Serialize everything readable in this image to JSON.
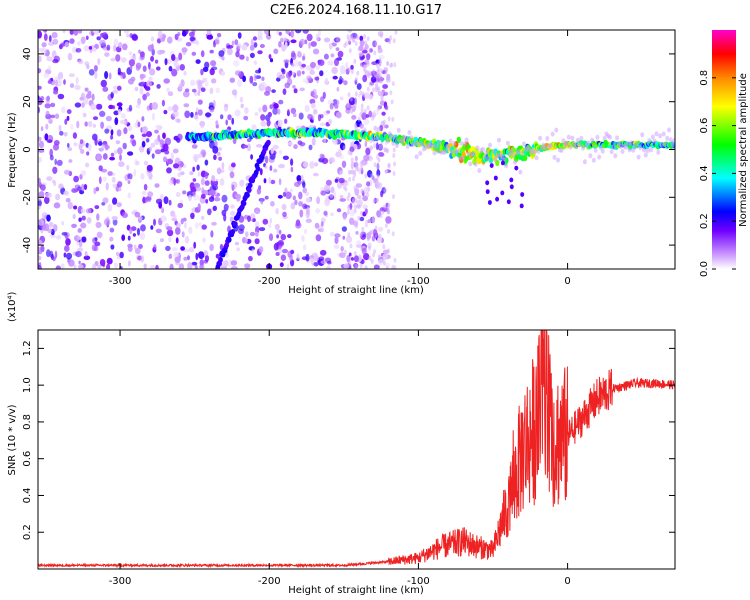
{
  "title": "C2E6.2024.168.11.10.G17",
  "chart_data": [
    {
      "type": "heatmap",
      "xlabel": "Height of straight line (km)",
      "ylabel": "Frequency (Hz)",
      "xlim": [
        -355,
        72
      ],
      "ylim": [
        -50,
        50
      ],
      "x_ticks": [
        -300,
        -200,
        -100,
        0
      ],
      "y_ticks": [
        -40,
        -20,
        0,
        20,
        40
      ],
      "colorbar": {
        "label": "Normalized spectral amplitude",
        "range": [
          0,
          1
        ],
        "ticks": [
          0.0,
          0.2,
          0.4,
          0.6,
          0.8
        ],
        "colors": [
          "#ffffff",
          "#cc99ff",
          "#7000ff",
          "#0000ff",
          "#00ffff",
          "#00ff00",
          "#ffff00",
          "#ff8800",
          "#ff0000",
          "#ff00cc"
        ]
      },
      "noise_region_km": [
        -355,
        -120
      ],
      "ridge": {
        "x": [
          -255,
          -230,
          -200,
          -170,
          -140,
          -120,
          -100,
          -80,
          -60,
          -45,
          -30,
          -15,
          0,
          20,
          50,
          72
        ],
        "freq": [
          5,
          6,
          7,
          7,
          6,
          5,
          3,
          1,
          -3,
          -2,
          -1,
          1,
          2,
          2,
          2,
          2
        ],
        "amp": [
          0.3,
          0.35,
          0.4,
          0.4,
          0.45,
          0.45,
          0.5,
          0.55,
          0.6,
          0.55,
          0.5,
          0.65,
          0.6,
          0.45,
          0.4,
          0.4
        ]
      },
      "diagonal_streak": {
        "x_start": -235,
        "y_start": -50,
        "x_end": -200,
        "y_end": 5
      }
    },
    {
      "type": "line",
      "xlabel": "Height of straight line (km)",
      "ylabel": "SNR (10 * v/v)",
      "y_multiplier": "(x10⁴)",
      "xlim": [
        -355,
        72
      ],
      "ylim": [
        0,
        1.3
      ],
      "x_ticks": [
        -300,
        -200,
        -100,
        0
      ],
      "y_ticks": [
        0.2,
        0.4,
        0.6,
        0.8,
        1.0,
        1.2
      ],
      "color": "#ee2222",
      "envelope": {
        "x": [
          -355,
          -150,
          -120,
          -100,
          -85,
          -70,
          -60,
          -50,
          -40,
          -30,
          -20,
          -15,
          -10,
          0,
          10,
          20,
          30,
          45,
          60,
          72
        ],
        "y": [
          0.02,
          0.02,
          0.04,
          0.06,
          0.12,
          0.15,
          0.12,
          0.1,
          0.35,
          0.65,
          0.8,
          0.95,
          0.7,
          0.72,
          0.82,
          0.93,
          0.98,
          1.01,
          1.01,
          1.0
        ]
      }
    }
  ]
}
